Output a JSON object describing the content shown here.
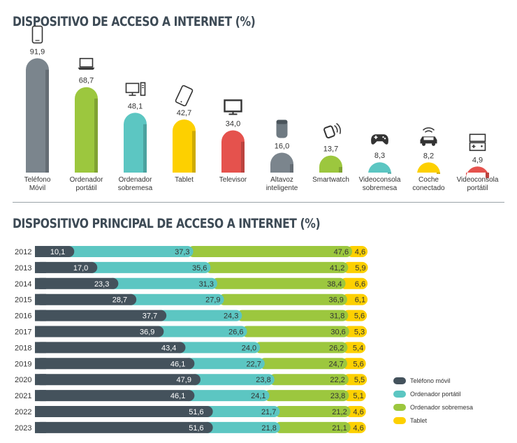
{
  "titles": {
    "top": "DISPOSITIVO DE ACCESO A INTERNET (%)",
    "bottom": "DISPOSITIVO PRINCIPAL DE ACCESO A INTERNET (%)"
  },
  "colors": {
    "telefono": "#7b858d",
    "portatil": "#9cc73e",
    "sobremesa": "#5cc6c2",
    "tablet": "#fdd000",
    "televisor": "#e5524d",
    "dark": "#44525c",
    "teal": "#5cc6c2",
    "green": "#9cc73e",
    "yellow": "#fdd000"
  },
  "chart_data": [
    {
      "type": "bar",
      "title": "DISPOSITIVO DE ACCESO A INTERNET (%)",
      "categories": [
        [
          "Teléfono",
          "Móvil"
        ],
        [
          "Ordenador",
          "portátil"
        ],
        [
          "Ordenador",
          "sobremesa"
        ],
        [
          "Tablet"
        ],
        [
          "Televisor"
        ],
        [
          "Altavoz",
          "inteligente"
        ],
        [
          "Smartwatch"
        ],
        [
          "Videoconsola",
          "sobremesa"
        ],
        [
          "Coche",
          "conectado"
        ],
        [
          "Videoconsola",
          "portátil"
        ]
      ],
      "values": [
        91.9,
        68.7,
        48.1,
        42.7,
        34.0,
        16.0,
        13.7,
        8.3,
        8.2,
        4.9
      ],
      "value_labels": [
        "91,9",
        "68,7",
        "48,1",
        "42,7",
        "34,0",
        "16,0",
        "13,7",
        "8,3",
        "8,2",
        "4,9"
      ],
      "bar_colors": [
        "#7b858d",
        "#9cc73e",
        "#5cc6c2",
        "#fdd000",
        "#e5524d",
        "#7b858d",
        "#9cc73e",
        "#5cc6c2",
        "#fdd000",
        "#e5524d"
      ],
      "icons": [
        "smartphone-icon",
        "laptop-icon",
        "desktop-computer-icon",
        "tablet-icon",
        "television-icon",
        "smart-speaker-icon",
        "smartwatch-icon",
        "game-controller-icon",
        "connected-car-icon",
        "handheld-console-icon"
      ],
      "ylim": [
        0,
        100
      ]
    },
    {
      "type": "bar",
      "orientation": "horizontal",
      "stacked": true,
      "title": "DISPOSITIVO PRINCIPAL DE ACCESO A INTERNET (%)",
      "categories": [
        "2012",
        "2013",
        "2014",
        "2015",
        "2016",
        "2017",
        "2018",
        "2019",
        "2020",
        "2021",
        "2022",
        "2023"
      ],
      "series": [
        {
          "name": "Teléfono móvil",
          "color": "#44525c",
          "values": [
            10.1,
            17.0,
            23.3,
            28.7,
            37.7,
            36.9,
            43.4,
            46.1,
            47.9,
            46.1,
            51.6,
            51.6
          ],
          "labels": [
            "10,1",
            "17,0",
            "23,3",
            "28,7",
            "37,7",
            "36,9",
            "43,4",
            "46,1",
            "47,9",
            "46,1",
            "51,6",
            "51,6"
          ]
        },
        {
          "name": "Ordenador portátil",
          "color": "#5cc6c2",
          "values": [
            37.3,
            35.6,
            31.3,
            27.9,
            24.3,
            26.6,
            24.0,
            22.7,
            23.8,
            24.1,
            21.7,
            21.8
          ],
          "labels": [
            "37,3",
            "35,6",
            "31,3",
            "27,9",
            "24,3",
            "26,6",
            "24,0",
            "22,7",
            "23,8",
            "24,1",
            "21,7",
            "21,8"
          ]
        },
        {
          "name": "Ordenador sobremesa",
          "color": "#9cc73e",
          "values": [
            47.6,
            41.2,
            38.4,
            36.9,
            31.8,
            30.6,
            26.2,
            24.7,
            22.2,
            23.8,
            21.2,
            21.1
          ],
          "labels": [
            "47,6",
            "41,2",
            "38,4",
            "36,9",
            "31,8",
            "30,6",
            "26,2",
            "24,7",
            "22,2",
            "23,8",
            "21,2",
            "21,1"
          ]
        },
        {
          "name": "Tablet",
          "color": "#fdd000",
          "values": [
            4.6,
            5.9,
            6.6,
            6.1,
            5.6,
            5.3,
            5.4,
            5.6,
            5.5,
            5.1,
            4.6,
            4.6
          ],
          "labels": [
            "4,6",
            "5,9",
            "6,6",
            "6,1",
            "5,6",
            "5,3",
            "5,4",
            "5,6",
            "5,5",
            "5,1",
            "4,6",
            "4,6"
          ]
        }
      ],
      "legend": "right"
    }
  ]
}
